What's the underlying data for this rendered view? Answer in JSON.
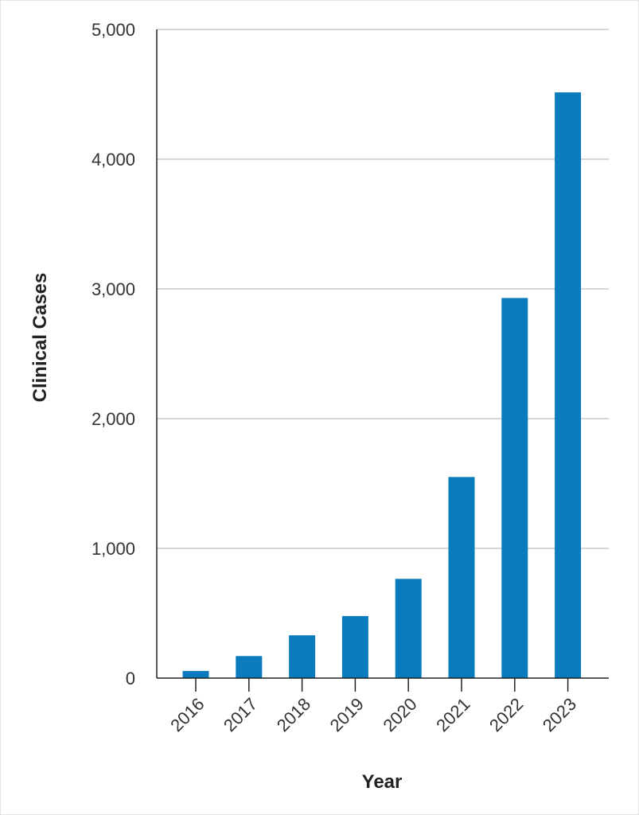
{
  "chart_data": {
    "type": "bar",
    "title": "",
    "xlabel": "Year",
    "ylabel": "Clinical Cases",
    "categories": [
      "2016",
      "2017",
      "2018",
      "2019",
      "2020",
      "2021",
      "2022",
      "2023"
    ],
    "values": [
      55,
      170,
      330,
      478,
      765,
      1550,
      2930,
      4515
    ],
    "ylim": [
      0,
      5000
    ],
    "yticks": [
      0,
      1000,
      2000,
      3000,
      4000,
      5000
    ],
    "ytick_labels": [
      "0",
      "1,000",
      "2,000",
      "3,000",
      "4,000",
      "5,000"
    ],
    "grid": true,
    "legend": null,
    "bar_color": "#0a7bbd",
    "grid_color": "#d6d6d6",
    "axis_color": "#222222"
  }
}
